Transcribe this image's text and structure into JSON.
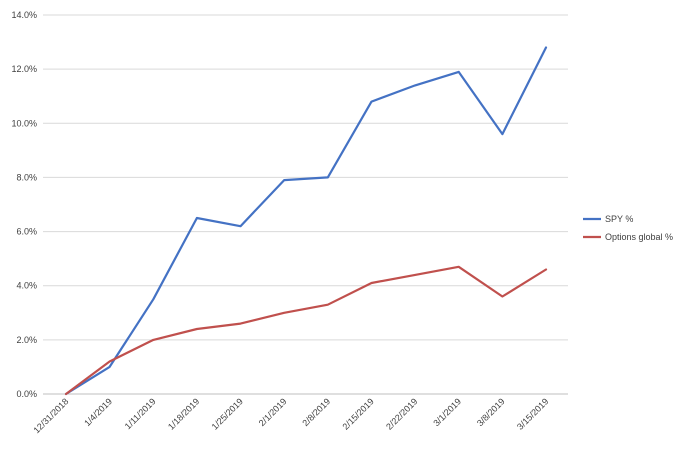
{
  "chart_data": {
    "type": "line",
    "x": [
      "12/31/2018",
      "1/4/2019",
      "1/11/2019",
      "1/18/2019",
      "1/25/2019",
      "2/1/2019",
      "2/8/2019",
      "2/15/2019",
      "2/22/2019",
      "3/1/2019",
      "3/8/2019",
      "3/15/2019"
    ],
    "series": [
      {
        "name": "SPY %",
        "color": "#4472c4",
        "values": [
          0.0,
          1.0,
          3.5,
          6.5,
          6.2,
          7.9,
          8.0,
          10.8,
          11.4,
          11.9,
          9.6,
          12.8
        ]
      },
      {
        "name": "Options global %",
        "color": "#c0504d",
        "values": [
          0.0,
          1.2,
          2.0,
          2.4,
          2.6,
          3.0,
          3.3,
          4.1,
          4.4,
          4.7,
          3.6,
          4.6
        ]
      }
    ],
    "y_ticks": [
      "0.0%",
      "2.0%",
      "4.0%",
      "6.0%",
      "8.0%",
      "10.0%",
      "12.0%",
      "14.0%"
    ],
    "ylim": [
      0,
      14
    ],
    "grid": true,
    "legend_position": "right",
    "title": "",
    "xlabel": "",
    "ylabel": ""
  }
}
